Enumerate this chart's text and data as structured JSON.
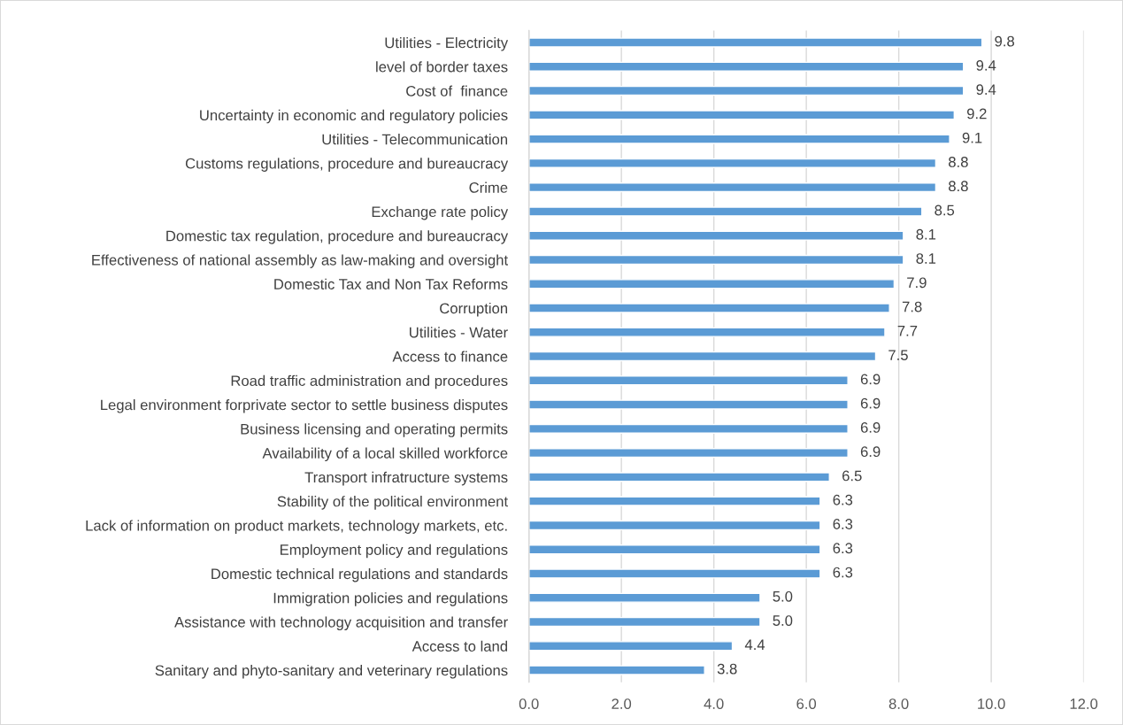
{
  "chart_data": {
    "type": "bar",
    "orientation": "horizontal",
    "categories": [
      "Utilities - Electricity",
      "level of border taxes",
      "Cost of  finance",
      "Uncertainty in economic and regulatory policies",
      "Utilities - Telecommunication",
      "Customs regulations, procedure and bureaucracy",
      "Crime",
      "Exchange rate policy",
      "Domestic tax regulation, procedure and bureaucracy",
      "Effectiveness of national assembly as law-making and oversight",
      "Domestic Tax and Non Tax Reforms",
      "Corruption",
      "Utilities - Water",
      "Access to finance",
      "Road traffic administration and procedures",
      "Legal environment forprivate sector to settle business disputes",
      "Business licensing and operating permits",
      "Availability of a local skilled workforce",
      "Transport infratructure systems",
      "Stability of the political environment",
      "Lack of information on product markets, technology markets, etc.",
      "Employment policy and regulations",
      "Domestic technical regulations and standards",
      "Immigration policies and regulations",
      "Assistance with technology acquisition and transfer",
      "Access to land",
      "Sanitary and phyto-sanitary and veterinary regulations"
    ],
    "values": [
      9.8,
      9.4,
      9.4,
      9.2,
      9.1,
      8.8,
      8.8,
      8.5,
      8.1,
      8.1,
      7.9,
      7.8,
      7.7,
      7.5,
      6.9,
      6.9,
      6.9,
      6.9,
      6.5,
      6.3,
      6.3,
      6.3,
      6.3,
      5.0,
      5.0,
      4.4,
      3.8
    ],
    "value_labels": [
      "9.8",
      "9.4",
      "9.4",
      "9.2",
      "9.1",
      "8.8",
      "8.8",
      "8.5",
      "8.1",
      "8.1",
      "7.9",
      "7.8",
      "7.7",
      "7.5",
      "6.9",
      "6.9",
      "6.9",
      "6.9",
      "6.5",
      "6.3",
      "6.3",
      "6.3",
      "6.3",
      "5.0",
      "5.0",
      "4.4",
      "3.8"
    ],
    "color": "#5b9bd5",
    "xlim": [
      0,
      12
    ],
    "xticks": [
      {
        "value": 0,
        "label": "0.0"
      },
      {
        "value": 2,
        "label": "2.0"
      },
      {
        "value": 4,
        "label": "4.0"
      },
      {
        "value": 6,
        "label": "6.0"
      },
      {
        "value": 8,
        "label": "8.0"
      },
      {
        "value": 10,
        "label": "10.0"
      },
      {
        "value": 12,
        "label": "12.0"
      }
    ],
    "grid": "x"
  }
}
